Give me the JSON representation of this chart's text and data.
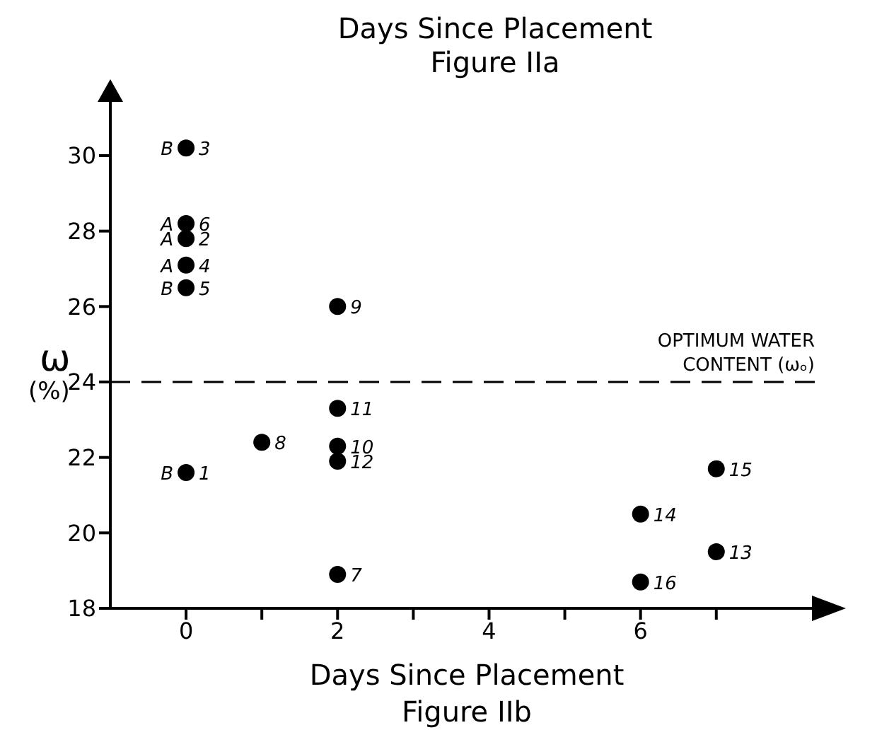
{
  "chart_data": {
    "type": "scatter",
    "xlabel": "Days Since Placement",
    "ylabel": "ω (%)",
    "annotations": [
      "Days Since Placement",
      "Figure IIa",
      "Figure IIb",
      {
        "text": "B",
        "x": 0,
        "y": 30.2
      },
      {
        "text": "3",
        "x": 0,
        "y": 30.2
      },
      {
        "text": "A",
        "x": 0,
        "y": 28.2
      },
      {
        "text": "6",
        "x": 0,
        "y": 28.2
      },
      {
        "text": "A",
        "x": 0,
        "y": 27.8
      },
      {
        "text": "2",
        "x": 0,
        "y": 27.8
      },
      {
        "text": "A",
        "x": 0,
        "y": 27.1
      },
      {
        "text": "4",
        "x": 0,
        "y": 27.1
      },
      {
        "text": "B",
        "x": 0,
        "y": 26.5
      },
      {
        "text": "5",
        "x": 0,
        "y": 26.5
      },
      {
        "text": "B",
        "x": 0,
        "y": 21.6
      },
      {
        "text": "1",
        "x": 0,
        "y": 21.6
      },
      {
        "text": "8",
        "x": 1,
        "y": 22.4
      },
      {
        "text": "9",
        "x": 2,
        "y": 26.0
      },
      {
        "text": "11",
        "x": 2,
        "y": 23.3
      },
      {
        "text": "10",
        "x": 2,
        "y": 22.3
      },
      {
        "text": "12",
        "x": 2,
        "y": 21.9
      },
      {
        "text": "7",
        "x": 2,
        "y": 18.9
      },
      {
        "text": "14",
        "x": 6,
        "y": 20.5
      },
      {
        "text": "16",
        "x": 6,
        "y": 18.7
      },
      {
        "text": "15",
        "x": 7,
        "y": 21.7
      },
      {
        "text": "13",
        "x": 7,
        "y": 19.5
      }
    ],
    "series": [
      {
        "color": "#000000",
        "x": [
          0,
          0,
          0,
          0,
          0,
          0,
          1,
          2,
          2,
          2,
          2,
          2,
          6,
          6,
          7,
          7
        ],
        "values": [
          30.2,
          28.2,
          27.8,
          27.1,
          26.5,
          21.6,
          22.4,
          26.0,
          23.3,
          22.3,
          21.9,
          18.9,
          20.5,
          18.7,
          21.7,
          19.5
        ]
      }
    ],
    "xlim": [
      -1,
      8.3
    ],
    "xticks": [
      0,
      {
        "value": 1,
        "label": null
      },
      2,
      {
        "value": 3,
        "label": null
      },
      4,
      {
        "value": 5,
        "label": null
      },
      6,
      {
        "value": 7,
        "label": null
      }
    ],
    "ylim": [
      18,
      31.5
    ],
    "yticks": [
      18,
      20,
      22,
      24,
      26,
      28,
      30
    ],
    "ref_lines": [
      {
        "axis": "y",
        "value": 24,
        "label": "OPTIMUM WATER CONTENT (ωₒ)",
        "line_style": "dashed",
        "color": "#000000"
      }
    ],
    "grid": false,
    "legend": false,
    "marker": "circle"
  }
}
